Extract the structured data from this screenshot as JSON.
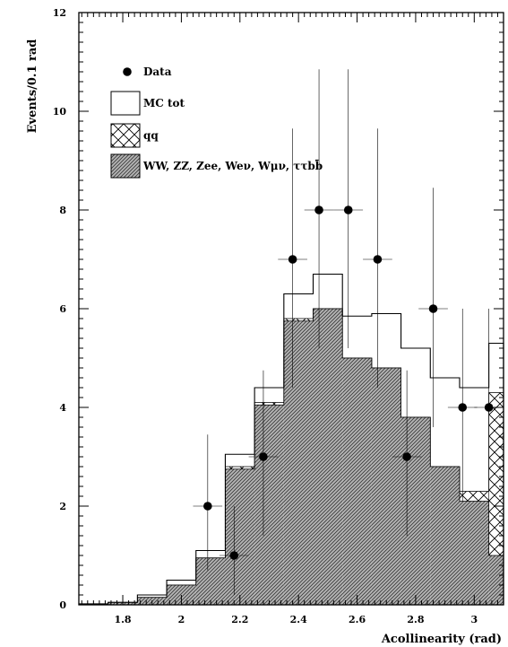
{
  "chart_data": {
    "type": "histogram",
    "xlabel": "Acollinearity (rad)",
    "ylabel": "Events/0.1 rad",
    "xlim": [
      1.65,
      3.1
    ],
    "ylim": [
      0,
      12
    ],
    "x_ticks": [
      "1.8",
      "2",
      "2.2",
      "2.4",
      "2.6",
      "2.8",
      "3"
    ],
    "y_ticks": [
      "0",
      "2",
      "4",
      "6",
      "8",
      "10",
      "12"
    ],
    "bin_edges": [
      1.65,
      1.75,
      1.85,
      1.95,
      2.05,
      2.15,
      2.25,
      2.35,
      2.45,
      2.55,
      2.65,
      2.75,
      2.85,
      2.95,
      3.05,
      3.1
    ],
    "series": [
      {
        "name": "MC tot",
        "kind": "hollow_step",
        "values": [
          0.02,
          0.05,
          0.2,
          0.5,
          1.1,
          3.05,
          4.4,
          6.3,
          6.7,
          5.85,
          5.9,
          5.2,
          4.6,
          4.4,
          5.3
        ]
      },
      {
        "name": "qq",
        "kind": "crosshatch",
        "values": [
          0.02,
          0.05,
          0.15,
          0.4,
          0.95,
          2.8,
          4.1,
          5.8,
          6.0,
          5.0,
          4.8,
          3.8,
          2.8,
          2.3,
          4.3
        ]
      },
      {
        "name": "WW, ZZ, Zee, Weν, Wμν, ττbb̄",
        "kind": "dense_hatch",
        "values": [
          0.02,
          0.05,
          0.15,
          0.4,
          0.95,
          2.75,
          4.05,
          5.75,
          6.0,
          5.0,
          4.8,
          3.8,
          2.8,
          2.1,
          1.0
        ]
      },
      {
        "name": "Data",
        "kind": "points",
        "x": [
          2.09,
          2.18,
          2.28,
          2.38,
          2.47,
          2.57,
          2.67,
          2.77,
          2.86,
          2.96,
          3.05
        ],
        "y": [
          2,
          1,
          3,
          7,
          8,
          8,
          7,
          3,
          6,
          4,
          4
        ],
        "y_err_up": [
          1.45,
          1.0,
          1.75,
          2.65,
          2.85,
          2.85,
          2.65,
          1.75,
          2.45,
          2.0,
          2.0
        ],
        "y_err_down": [
          1.3,
          0.8,
          1.6,
          2.6,
          2.8,
          2.8,
          2.6,
          1.6,
          2.4,
          1.9,
          1.9
        ]
      }
    ],
    "legend": {
      "position": "top-left",
      "entries": [
        {
          "label": "Data",
          "symbol": "dot"
        },
        {
          "label": "MC tot",
          "symbol": "hollow-box"
        },
        {
          "label": "qq",
          "symbol": "crosshatch-box"
        },
        {
          "label": "WW, ZZ, Zee, Weν, Wμν, ττbb̄",
          "symbol": "dense-hatch-box"
        }
      ]
    }
  }
}
